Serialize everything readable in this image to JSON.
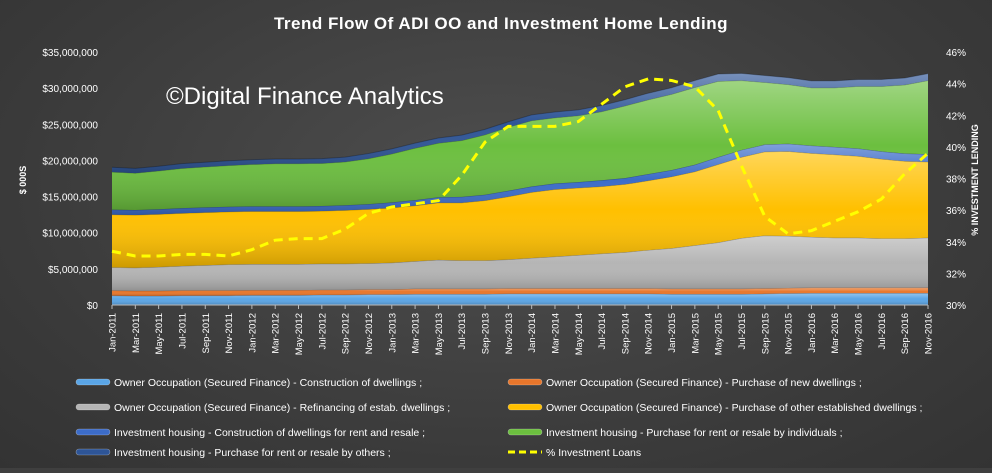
{
  "chart_data": {
    "type": "area",
    "title": "Trend Flow Of ADI OO and Investment Home Lending",
    "watermark": "©Digital Finance Analytics",
    "ylabel": "$ 000S",
    "y2label": "% INVESTMENT LENDING",
    "ylim": [
      0,
      35000000
    ],
    "y2lim": [
      30,
      46
    ],
    "yticks": [
      "$0",
      "$5,000,000",
      "$10,000,000",
      "$15,000,000",
      "$20,000,000",
      "$25,000,000",
      "$30,000,000",
      "$35,000,000"
    ],
    "y2ticks": [
      "30%",
      "32%",
      "34%",
      "36%",
      "38%",
      "40%",
      "42%",
      "44%",
      "46%"
    ],
    "stacked": true,
    "grid": false,
    "legend_position": "bottom",
    "x": [
      "Jan-2011",
      "Mar-2011",
      "May-2011",
      "Jul-2011",
      "Sep-2011",
      "Nov-2011",
      "Jan-2012",
      "Mar-2012",
      "May-2012",
      "Jul-2012",
      "Sep-2012",
      "Nov-2012",
      "Jan-2013",
      "Mar-2013",
      "May-2013",
      "Jul-2013",
      "Sep-2013",
      "Nov-2013",
      "Jan-2014",
      "Mar-2014",
      "May-2014",
      "Jul-2014",
      "Sep-2014",
      "Nov-2014",
      "Jan-2015",
      "Mar-2015",
      "May-2015",
      "Jul-2015",
      "Sep-2015",
      "Nov-2015",
      "Jan-2016",
      "Mar-2016",
      "May-2016",
      "Jul-2016",
      "Sep-2016",
      "Nov-2016"
    ],
    "series": [
      {
        "name": "Owner Occupation (Secured Finance) - Construction of dwellings ;",
        "color": "#5aa5e6",
        "values": [
          1300000,
          1250000,
          1250000,
          1300000,
          1300000,
          1300000,
          1350000,
          1350000,
          1350000,
          1400000,
          1400000,
          1450000,
          1450000,
          1500000,
          1500000,
          1500000,
          1500000,
          1550000,
          1550000,
          1550000,
          1550000,
          1550000,
          1550000,
          1550000,
          1500000,
          1500000,
          1500000,
          1500000,
          1550000,
          1600000,
          1650000,
          1650000,
          1650000,
          1650000,
          1650000,
          1650000
        ]
      },
      {
        "name": "Owner Occupation (Secured Finance) - Purchase of new dwellings ;",
        "color": "#e8762b",
        "values": [
          700000,
          700000,
          700000,
          700000,
          700000,
          700000,
          700000,
          700000,
          700000,
          700000,
          700000,
          700000,
          700000,
          750000,
          750000,
          750000,
          750000,
          750000,
          750000,
          750000,
          750000,
          750000,
          750000,
          750000,
          750000,
          750000,
          750000,
          750000,
          750000,
          750000,
          750000,
          750000,
          750000,
          750000,
          750000,
          750000
        ]
      },
      {
        "name": "Owner Occupation (Secured Finance) - Refinancing of estab. dwellings ;",
        "color": "#b5b5b5",
        "values": [
          3200000,
          3200000,
          3300000,
          3400000,
          3500000,
          3600000,
          3600000,
          3600000,
          3600000,
          3600000,
          3600000,
          3600000,
          3700000,
          3800000,
          4000000,
          3900000,
          3900000,
          4000000,
          4200000,
          4400000,
          4600000,
          4800000,
          5000000,
          5300000,
          5600000,
          6000000,
          6400000,
          7000000,
          7300000,
          7200000,
          7000000,
          6900000,
          6900000,
          6800000,
          6800000,
          6900000
        ]
      },
      {
        "name": "Owner Occupation (Secured Finance) - Purchase of other established dwellings ;",
        "color": "#ffc000",
        "values": [
          7300000,
          7300000,
          7300000,
          7300000,
          7300000,
          7300000,
          7300000,
          7300000,
          7300000,
          7300000,
          7400000,
          7500000,
          7600000,
          7700000,
          7900000,
          8000000,
          8300000,
          8700000,
          9100000,
          9300000,
          9300000,
          9300000,
          9400000,
          9600000,
          9900000,
          10200000,
          10800000,
          11200000,
          11600000,
          11700000,
          11600000,
          11500000,
          11300000,
          11000000,
          10700000,
          10500000
        ]
      },
      {
        "name": "Investment housing - Construction of dwellings for rent and resale ;",
        "color": "#3c6cc8",
        "values": [
          700000,
          700000,
          700000,
          700000,
          700000,
          700000,
          700000,
          700000,
          700000,
          700000,
          700000,
          700000,
          750000,
          750000,
          750000,
          800000,
          800000,
          800000,
          800000,
          800000,
          800000,
          850000,
          850000,
          900000,
          900000,
          950000,
          1000000,
          1000000,
          1000000,
          1050000,
          1050000,
          1050000,
          1050000,
          1050000,
          1050000,
          1050000
        ]
      },
      {
        "name": "Investment housing - Purchase for rent or resale by individuals ;",
        "color": "#6cbf3f",
        "values": [
          5200000,
          5100000,
          5300000,
          5500000,
          5600000,
          5700000,
          5800000,
          5900000,
          5900000,
          5900000,
          6000000,
          6300000,
          6700000,
          7200000,
          7500000,
          7800000,
          8300000,
          8800000,
          9100000,
          9100000,
          9200000,
          9500000,
          10000000,
          10300000,
          10500000,
          10700000,
          10500000,
          9600000,
          8600000,
          8200000,
          8000000,
          8200000,
          8600000,
          9000000,
          9500000,
          10200000
        ]
      },
      {
        "name": "Investment housing - Purchase for rent or resale by others ;",
        "color": "#2e5597",
        "values": [
          650000,
          650000,
          650000,
          650000,
          650000,
          650000,
          650000,
          650000,
          650000,
          650000,
          650000,
          700000,
          700000,
          700000,
          700000,
          750000,
          750000,
          750000,
          800000,
          800000,
          800000,
          850000,
          850000,
          900000,
          900000,
          950000,
          1000000,
          1000000,
          950000,
          950000,
          950000,
          950000,
          950000,
          950000,
          950000,
          950000
        ]
      },
      {
        "name": "% Investment Loans",
        "color": "#ffff00",
        "axis": "secondary",
        "style": "dashed-line",
        "values": [
          33.4,
          33.1,
          33.1,
          33.2,
          33.2,
          33.1,
          33.5,
          34.1,
          34.2,
          34.2,
          34.8,
          35.8,
          36.2,
          36.4,
          36.6,
          38.2,
          40.3,
          41.3,
          41.3,
          41.3,
          41.6,
          42.7,
          43.8,
          44.3,
          44.2,
          43.8,
          42.3,
          38.8,
          35.6,
          34.5,
          34.7,
          35.3,
          35.9,
          36.7,
          38.3,
          39.6
        ]
      }
    ]
  }
}
